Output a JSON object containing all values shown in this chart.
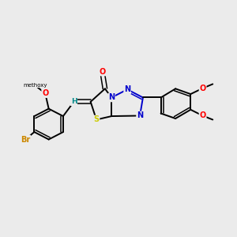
{
  "bg_color": "#ebebeb",
  "bond_color": "#000000",
  "atom_colors": {
    "O": "#ff0000",
    "N": "#0000cc",
    "S": "#cccc00",
    "Br": "#cc8800",
    "H": "#008888",
    "C": "#000000"
  },
  "figsize": [
    3.0,
    3.0
  ],
  "dpi": 100
}
